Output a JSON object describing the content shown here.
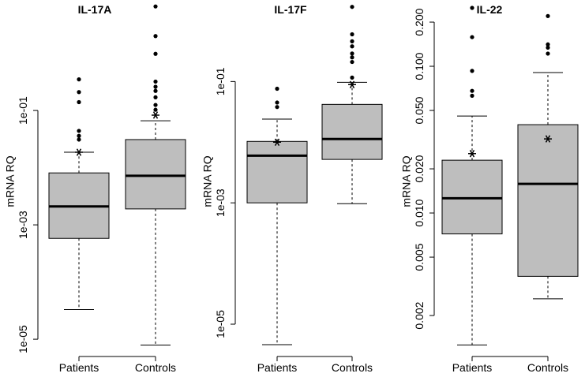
{
  "chart_data": [
    {
      "type": "box",
      "title": "IL-17A",
      "ylabel": "mRNA RQ",
      "log": true,
      "color": "#bebebe",
      "categories": [
        "Patients",
        "Controls"
      ],
      "ylim": [
        7.3e-06,
        7.3
      ],
      "yticks": [
        {
          "value": 1e-05,
          "label": "1e-05"
        },
        {
          "value": 0.001,
          "label": "1e-03"
        },
        {
          "value": 0.1,
          "label": "1e-01"
        }
      ],
      "boxes": [
        {
          "whisker_low": 3.3e-05,
          "q1": 0.00058,
          "median": 0.0021,
          "q3": 0.0081,
          "whisker_high": 0.0186,
          "mean": 0.0186,
          "outliers": [
            0.35,
            0.21,
            0.14,
            0.044,
            0.036,
            0.031
          ]
        },
        {
          "whisker_low": 7.9e-06,
          "q1": 0.0019,
          "median": 0.0072,
          "q3": 0.031,
          "whisker_high": 0.066,
          "mean": 0.083,
          "outliers": [
            6.6,
            2.0,
            0.98,
            0.32,
            0.26,
            0.22,
            0.17,
            0.125,
            0.103
          ]
        }
      ]
    },
    {
      "type": "box",
      "title": "IL-17F",
      "ylabel": "mRNA RQ",
      "log": true,
      "color": "#bebebe",
      "categories": [
        "Patients",
        "Controls"
      ],
      "ylim": [
        4.2e-06,
        1.9
      ],
      "yticks": [
        {
          "value": 1e-05,
          "label": "1e-05"
        },
        {
          "value": 0.001,
          "label": "1e-03"
        },
        {
          "value": 0.1,
          "label": "1e-01"
        }
      ],
      "boxes": [
        {
          "whisker_low": 4.6e-06,
          "q1": 0.001,
          "median": 0.006,
          "q3": 0.0103,
          "whisker_high": 0.024,
          "mean": 0.01,
          "outliers": [
            0.076,
            0.045,
            0.038
          ]
        },
        {
          "whisker_low": 0.00097,
          "q1": 0.0052,
          "median": 0.0113,
          "q3": 0.042,
          "whisker_high": 0.097,
          "mean": 0.089,
          "outliers": [
            1.7,
            0.6,
            0.46,
            0.38,
            0.29,
            0.25,
            0.21,
            0.116
          ]
        }
      ]
    },
    {
      "type": "box",
      "title": "IL-22",
      "ylabel": "mRNA RQ",
      "log": true,
      "color": "#bebebe",
      "categories": [
        "Patients",
        "Controls"
      ],
      "ylim": [
        0.00122,
        0.266
      ],
      "yticks": [
        {
          "value": 0.002,
          "label": "0.002"
        },
        {
          "value": 0.005,
          "label": "0.005"
        },
        {
          "value": 0.01,
          "label": "0.010"
        },
        {
          "value": 0.02,
          "label": "0.020"
        },
        {
          "value": 0.05,
          "label": "0.050"
        },
        {
          "value": 0.1,
          "label": "0.100"
        },
        {
          "value": 0.2,
          "label": "0.200"
        }
      ],
      "boxes": [
        {
          "whisker_low": 0.00126,
          "q1": 0.0072,
          "median": 0.0126,
          "q3": 0.0229,
          "whisker_high": 0.0458,
          "mean": 0.0254,
          "outliers": [
            0.25,
            0.158,
            0.093,
            0.068,
            0.063
          ]
        },
        {
          "whisker_low": 0.0026,
          "q1": 0.0037,
          "median": 0.0158,
          "q3": 0.04,
          "whisker_high": 0.0906,
          "mean": 0.032,
          "outliers": [
            0.22,
            0.141,
            0.134,
            0.122
          ]
        }
      ]
    }
  ]
}
